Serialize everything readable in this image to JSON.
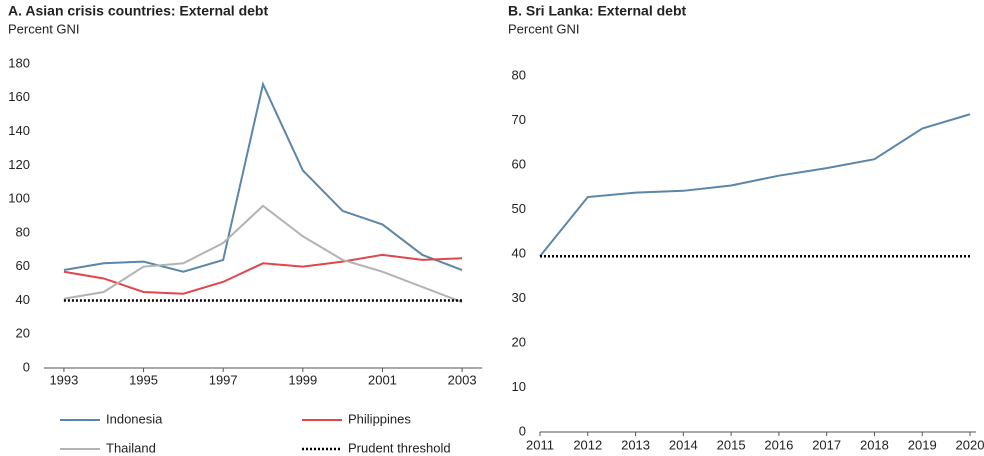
{
  "chart_data": [
    {
      "type": "line",
      "title": "A. Asian crisis countries: External debt",
      "subtitle": "Percent GNI",
      "x": [
        1993,
        1994,
        1995,
        1996,
        1997,
        1998,
        1999,
        2000,
        2001,
        2002,
        2003
      ],
      "xlim": [
        1992.5,
        2003.5
      ],
      "xticks": [
        1993,
        1995,
        1997,
        1999,
        2001,
        2003
      ],
      "ylim": [
        0,
        180
      ],
      "yticks": [
        0,
        20,
        40,
        60,
        80,
        100,
        120,
        140,
        160,
        180
      ],
      "legend": "bottom",
      "series": [
        {
          "name": "Indonesia",
          "color": "#5b86a8",
          "style": "solid",
          "values": [
            58,
            62,
            63,
            57,
            64,
            168,
            117,
            93,
            85,
            67,
            58
          ]
        },
        {
          "name": "Philippines",
          "color": "#e0474c",
          "style": "solid",
          "values": [
            57,
            53,
            45,
            44,
            51,
            62,
            60,
            63,
            67,
            64,
            65
          ]
        },
        {
          "name": "Thailand",
          "color": "#b3b3b3",
          "style": "solid",
          "values": [
            41,
            45,
            60,
            62,
            74,
            96,
            78,
            64,
            57,
            48,
            39
          ]
        },
        {
          "name": "Prudent threshold",
          "color": "#000000",
          "style": "dotted",
          "values": [
            40,
            40,
            40,
            40,
            40,
            40,
            40,
            40,
            40,
            40,
            40
          ]
        }
      ]
    },
    {
      "type": "line",
      "title": "B. Sri Lanka: External debt",
      "subtitle": "Percent GNI",
      "x": [
        2011,
        2012,
        2013,
        2014,
        2015,
        2016,
        2017,
        2018,
        2019,
        2020
      ],
      "xlim": [
        2011,
        2020
      ],
      "xticks": [
        2011,
        2012,
        2013,
        2014,
        2015,
        2016,
        2017,
        2018,
        2019,
        2020
      ],
      "ylim": [
        0,
        80
      ],
      "yticks": [
        0,
        10,
        20,
        30,
        40,
        50,
        60,
        70,
        80
      ],
      "series": [
        {
          "color": "#5b86a8",
          "style": "solid",
          "values": [
            39.5,
            52.8,
            53.8,
            54.2,
            55.4,
            57.6,
            59.3,
            61.3,
            68.2,
            71.4
          ]
        },
        {
          "color": "#000000",
          "style": "dotted",
          "values": [
            39.5,
            39.5,
            39.5,
            39.5,
            39.5,
            39.5,
            39.5,
            39.5,
            39.5,
            39.5
          ]
        }
      ]
    }
  ]
}
